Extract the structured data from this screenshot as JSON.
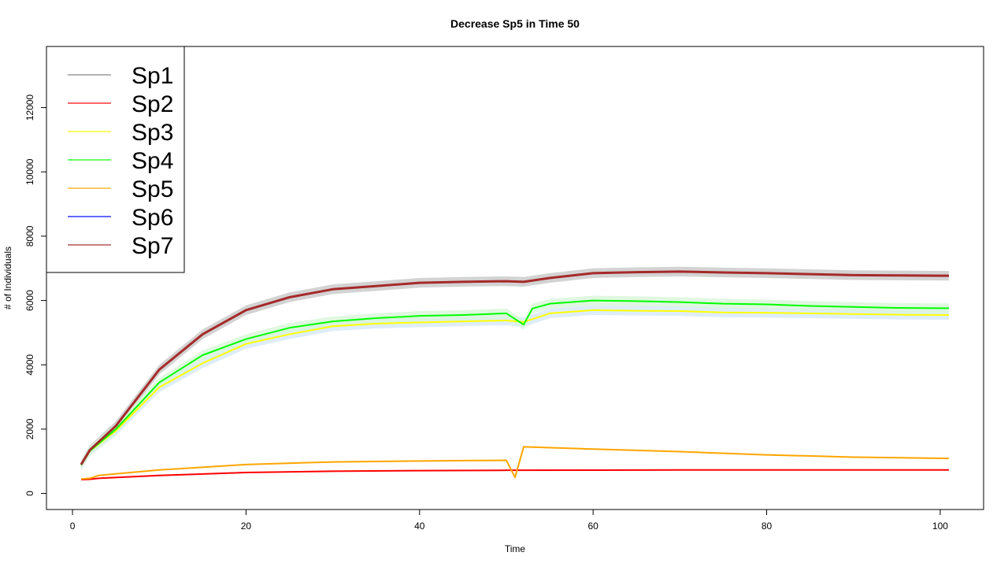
{
  "chart_data": {
    "type": "line",
    "title": "Decrease Sp5 in Time 50",
    "xlabel": "Time",
    "ylabel": "# of Individuals",
    "xlim": [
      -3,
      105
    ],
    "ylim": [
      -500,
      13900
    ],
    "x_ticks": [
      0,
      20,
      40,
      60,
      80,
      100
    ],
    "y_ticks": [
      0,
      2000,
      4000,
      6000,
      8000,
      10000,
      12000
    ],
    "grid": false,
    "legend_position": "top-left",
    "series": [
      {
        "name": "Sp1",
        "color": "#808080",
        "width": 2,
        "band": 150,
        "band_color": "#c8c8c8",
        "points": [
          [
            1,
            900
          ],
          [
            2,
            1350
          ],
          [
            5,
            2100
          ],
          [
            10,
            3850
          ],
          [
            15,
            4950
          ],
          [
            20,
            5700
          ],
          [
            25,
            6100
          ],
          [
            30,
            6350
          ],
          [
            35,
            6450
          ],
          [
            40,
            6550
          ],
          [
            45,
            6580
          ],
          [
            50,
            6600
          ],
          [
            52,
            6580
          ],
          [
            55,
            6700
          ],
          [
            60,
            6850
          ],
          [
            65,
            6880
          ],
          [
            70,
            6900
          ],
          [
            75,
            6870
          ],
          [
            80,
            6850
          ],
          [
            85,
            6820
          ],
          [
            90,
            6790
          ],
          [
            95,
            6780
          ],
          [
            100,
            6770
          ],
          [
            101,
            6770
          ]
        ]
      },
      {
        "name": "Sp2",
        "color": "#ff0000",
        "width": 2,
        "band": 0,
        "band_color": "",
        "points": [
          [
            1,
            430
          ],
          [
            2,
            440
          ],
          [
            3,
            470
          ],
          [
            10,
            560
          ],
          [
            20,
            650
          ],
          [
            30,
            690
          ],
          [
            40,
            710
          ],
          [
            50,
            720
          ],
          [
            60,
            725
          ],
          [
            70,
            730
          ],
          [
            80,
            730
          ],
          [
            90,
            730
          ],
          [
            101,
            730
          ]
        ]
      },
      {
        "name": "Sp3",
        "color": "#ffff00",
        "width": 2,
        "band": 150,
        "band_color": "#d6e8f7",
        "points": [
          [
            1,
            880
          ],
          [
            2,
            1320
          ],
          [
            5,
            1950
          ],
          [
            10,
            3300
          ],
          [
            15,
            4050
          ],
          [
            20,
            4650
          ],
          [
            25,
            4950
          ],
          [
            30,
            5200
          ],
          [
            35,
            5280
          ],
          [
            40,
            5320
          ],
          [
            45,
            5350
          ],
          [
            50,
            5380
          ],
          [
            52,
            5330
          ],
          [
            55,
            5600
          ],
          [
            60,
            5700
          ],
          [
            65,
            5680
          ],
          [
            70,
            5670
          ],
          [
            75,
            5630
          ],
          [
            80,
            5620
          ],
          [
            85,
            5600
          ],
          [
            90,
            5580
          ],
          [
            95,
            5560
          ],
          [
            100,
            5550
          ],
          [
            101,
            5550
          ]
        ]
      },
      {
        "name": "Sp4",
        "color": "#00ff00",
        "width": 2,
        "band": 150,
        "band_color": "#d8f5d8",
        "points": [
          [
            1,
            880
          ],
          [
            2,
            1320
          ],
          [
            5,
            2000
          ],
          [
            10,
            3450
          ],
          [
            15,
            4300
          ],
          [
            20,
            4800
          ],
          [
            25,
            5150
          ],
          [
            30,
            5350
          ],
          [
            35,
            5450
          ],
          [
            40,
            5520
          ],
          [
            45,
            5550
          ],
          [
            48,
            5580
          ],
          [
            50,
            5600
          ],
          [
            52,
            5250
          ],
          [
            53,
            5750
          ],
          [
            55,
            5900
          ],
          [
            60,
            6000
          ],
          [
            65,
            5980
          ],
          [
            70,
            5950
          ],
          [
            75,
            5900
          ],
          [
            80,
            5880
          ],
          [
            85,
            5830
          ],
          [
            90,
            5800
          ],
          [
            95,
            5770
          ],
          [
            100,
            5760
          ],
          [
            101,
            5760
          ]
        ]
      },
      {
        "name": "Sp5",
        "color": "#ffa500",
        "width": 2,
        "band": 0,
        "band_color": "",
        "points": [
          [
            1,
            450
          ],
          [
            2,
            470
          ],
          [
            3,
            560
          ],
          [
            10,
            730
          ],
          [
            20,
            900
          ],
          [
            30,
            980
          ],
          [
            40,
            1010
          ],
          [
            45,
            1020
          ],
          [
            50,
            1030
          ],
          [
            51,
            500
          ],
          [
            52,
            1450
          ],
          [
            60,
            1380
          ],
          [
            70,
            1300
          ],
          [
            80,
            1200
          ],
          [
            90,
            1130
          ],
          [
            101,
            1090
          ]
        ]
      },
      {
        "name": "Sp6",
        "color": "#0000ff",
        "width": 2,
        "band": 0,
        "band_color": "",
        "points": [
          [
            1,
            900
          ],
          [
            2,
            1350
          ],
          [
            5,
            2100
          ],
          [
            10,
            3850
          ],
          [
            15,
            4950
          ],
          [
            20,
            5700
          ],
          [
            25,
            6100
          ],
          [
            30,
            6350
          ],
          [
            35,
            6450
          ],
          [
            40,
            6550
          ],
          [
            45,
            6580
          ],
          [
            50,
            6600
          ],
          [
            52,
            6580
          ],
          [
            55,
            6700
          ],
          [
            60,
            6850
          ],
          [
            65,
            6880
          ],
          [
            70,
            6900
          ],
          [
            75,
            6870
          ],
          [
            80,
            6850
          ],
          [
            85,
            6820
          ],
          [
            90,
            6790
          ],
          [
            95,
            6780
          ],
          [
            100,
            6770
          ],
          [
            101,
            6770
          ]
        ]
      },
      {
        "name": "Sp7",
        "color": "#a52a2a",
        "width": 3,
        "band": 0,
        "band_color": "",
        "points": [
          [
            1,
            900
          ],
          [
            2,
            1350
          ],
          [
            5,
            2100
          ],
          [
            10,
            3850
          ],
          [
            15,
            4950
          ],
          [
            20,
            5700
          ],
          [
            25,
            6100
          ],
          [
            30,
            6350
          ],
          [
            35,
            6450
          ],
          [
            40,
            6550
          ],
          [
            45,
            6580
          ],
          [
            50,
            6600
          ],
          [
            52,
            6580
          ],
          [
            55,
            6700
          ],
          [
            60,
            6850
          ],
          [
            65,
            6880
          ],
          [
            70,
            6900
          ],
          [
            75,
            6870
          ],
          [
            80,
            6850
          ],
          [
            85,
            6820
          ],
          [
            90,
            6790
          ],
          [
            95,
            6780
          ],
          [
            100,
            6770
          ],
          [
            101,
            6770
          ]
        ]
      }
    ],
    "legend": [
      {
        "label": "Sp1",
        "color": "#808080"
      },
      {
        "label": "Sp2",
        "color": "#ff0000"
      },
      {
        "label": "Sp3",
        "color": "#ffff00"
      },
      {
        "label": "Sp4",
        "color": "#00ff00"
      },
      {
        "label": "Sp5",
        "color": "#ffa500"
      },
      {
        "label": "Sp6",
        "color": "#0000ff"
      },
      {
        "label": "Sp7",
        "color": "#a52a2a"
      }
    ]
  }
}
